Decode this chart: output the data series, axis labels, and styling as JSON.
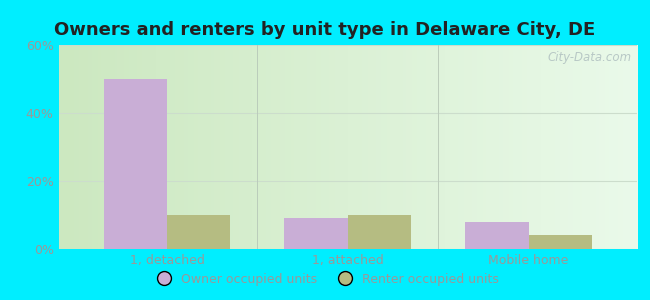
{
  "title": "Owners and renters by unit type in Delaware City, DE",
  "categories": [
    "1, detached",
    "1, attached",
    "Mobile home"
  ],
  "owner_values": [
    50,
    9,
    8
  ],
  "renter_values": [
    10,
    10,
    4
  ],
  "owner_color": "#c9aed6",
  "renter_color": "#b5bc82",
  "ylim": [
    0,
    60
  ],
  "yticks": [
    0,
    20,
    40,
    60
  ],
  "ytick_labels": [
    "0%",
    "20%",
    "40%",
    "60%"
  ],
  "bar_width": 0.35,
  "bg_left": "#cce8c0",
  "bg_right": "#eafaea",
  "outer_bg": "#00eeff",
  "watermark": "City-Data.com",
  "legend_owner": "Owner occupied units",
  "legend_renter": "Renter occupied units",
  "title_fontsize": 13,
  "tick_fontsize": 9,
  "legend_fontsize": 9,
  "grid_color": "#ccddcc",
  "tick_color": "#999999",
  "title_color": "#222222"
}
